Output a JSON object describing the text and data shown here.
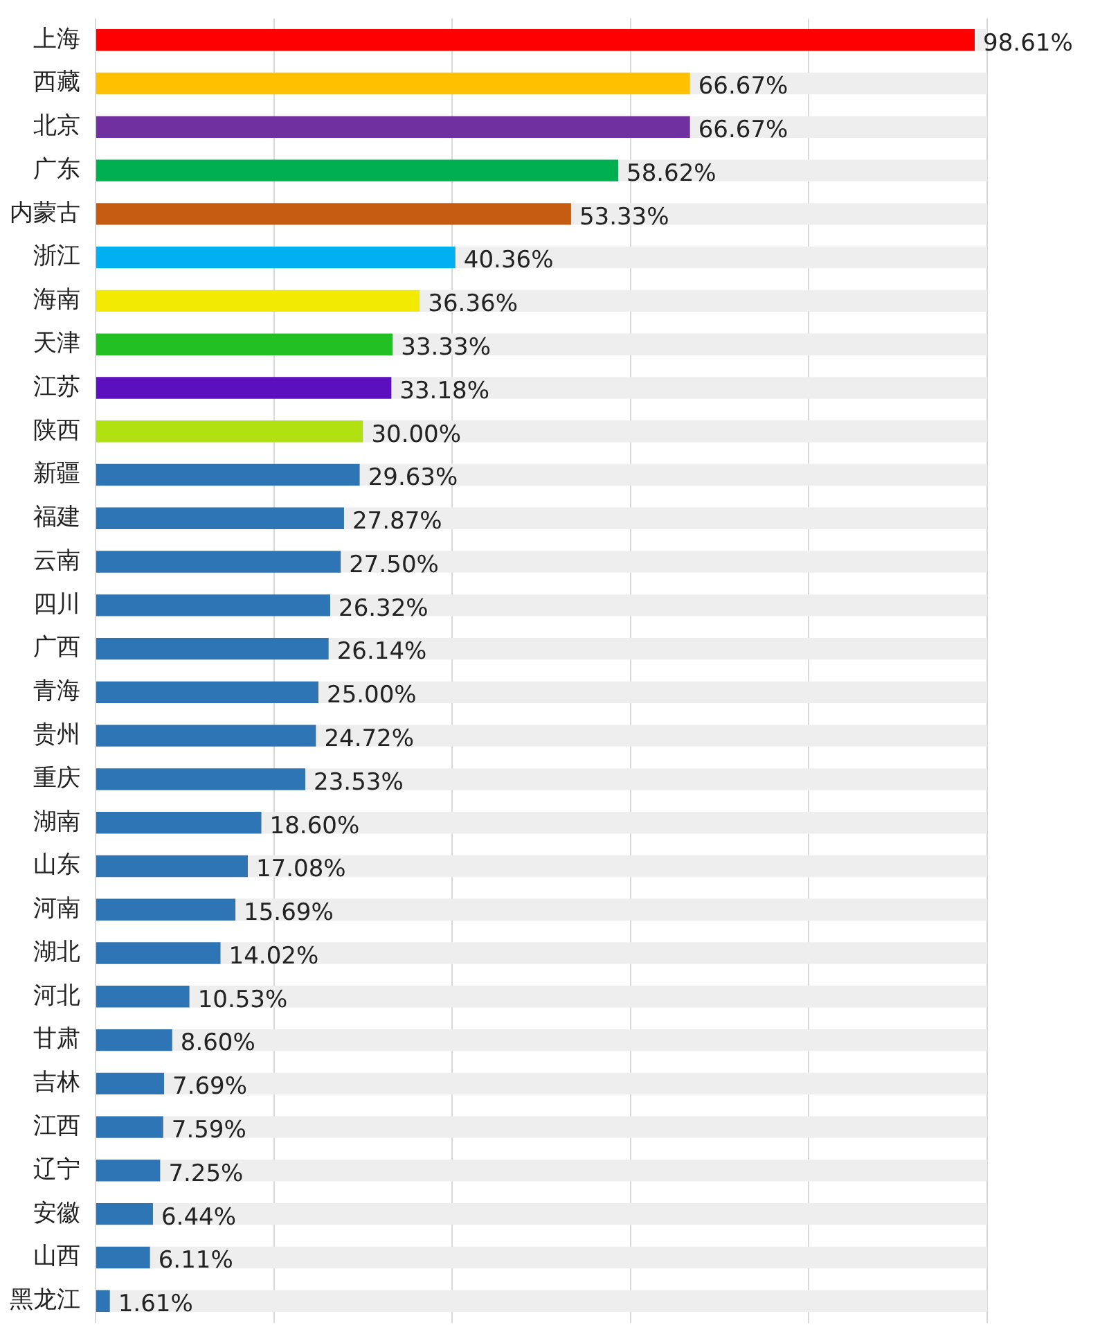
{
  "chart_data": {
    "type": "bar",
    "orientation": "horizontal",
    "categories": [
      "上海",
      "西藏",
      "北京",
      "广东",
      "内蒙古",
      "浙江",
      "海南",
      "天津",
      "江苏",
      "陕西",
      "新疆",
      "福建",
      "云南",
      "四川",
      "广西",
      "青海",
      "贵州",
      "重庆",
      "湖南",
      "山东",
      "河南",
      "湖北",
      "河北",
      "甘肃",
      "吉林",
      "江西",
      "辽宁",
      "安徽",
      "山西",
      "黑龙江"
    ],
    "series": [
      {
        "colors": [
          "#ff0000",
          "#ffc000",
          "#7030a0",
          "#00b050",
          "#c55a11",
          "#00b0f0",
          "#f2ea00",
          "#22c022",
          "#5b0fbe",
          "#b0e010",
          "#2e75b6",
          "#2e75b6",
          "#2e75b6",
          "#2e75b6",
          "#2e75b6",
          "#2e75b6",
          "#2e75b6",
          "#2e75b6",
          "#2e75b6",
          "#2e75b6",
          "#2e75b6",
          "#2e75b6",
          "#2e75b6",
          "#2e75b6",
          "#2e75b6",
          "#2e75b6",
          "#2e75b6",
          "#2e75b6",
          "#2e75b6",
          "#2e75b6"
        ],
        "values": [
          98.61,
          66.67,
          66.67,
          58.62,
          53.33,
          40.36,
          36.36,
          33.33,
          33.18,
          30.0,
          29.63,
          27.87,
          27.5,
          26.32,
          26.14,
          25.0,
          24.72,
          23.53,
          18.6,
          17.08,
          15.69,
          14.02,
          10.53,
          8.6,
          7.69,
          7.59,
          7.25,
          6.44,
          6.11,
          1.61
        ],
        "value_labels": [
          "98.61%",
          "66.67%",
          "66.67%",
          "58.62%",
          "53.33%",
          "40.36%",
          "36.36%",
          "33.33%",
          "33.18%",
          "30.00%",
          "29.63%",
          "27.87%",
          "27.50%",
          "26.32%",
          "26.14%",
          "25.00%",
          "24.72%",
          "23.53%",
          "18.60%",
          "17.08%",
          "15.69%",
          "14.02%",
          "10.53%",
          "8.60%",
          "7.69%",
          "7.59%",
          "7.25%",
          "6.44%",
          "6.11%",
          "1.61%"
        ]
      },
      {
        "color": "#eeeeee",
        "values": [
          1.39,
          33.33,
          33.33,
          41.38,
          46.67,
          59.64,
          63.64,
          66.67,
          66.82,
          70,
          70.37,
          72.13,
          72.5,
          73.68,
          73.86,
          75,
          75.28,
          76.47,
          81.4,
          82.92,
          84.31,
          85.98,
          89.47,
          91.4,
          92.31,
          92.41,
          92.75,
          93.56,
          93.89,
          98.39
        ]
      }
    ],
    "xlim": [
      0,
      100
    ],
    "xticks": [
      {
        "value": 0,
        "label": null
      },
      {
        "value": 20,
        "label": null
      },
      {
        "value": 40,
        "label": null
      },
      {
        "value": 60,
        "label": null
      },
      {
        "value": 80,
        "label": null
      },
      {
        "value": 100,
        "label": null
      }
    ],
    "stacked": true,
    "grid": "x",
    "tick_labels": "y",
    "legend": false
  }
}
